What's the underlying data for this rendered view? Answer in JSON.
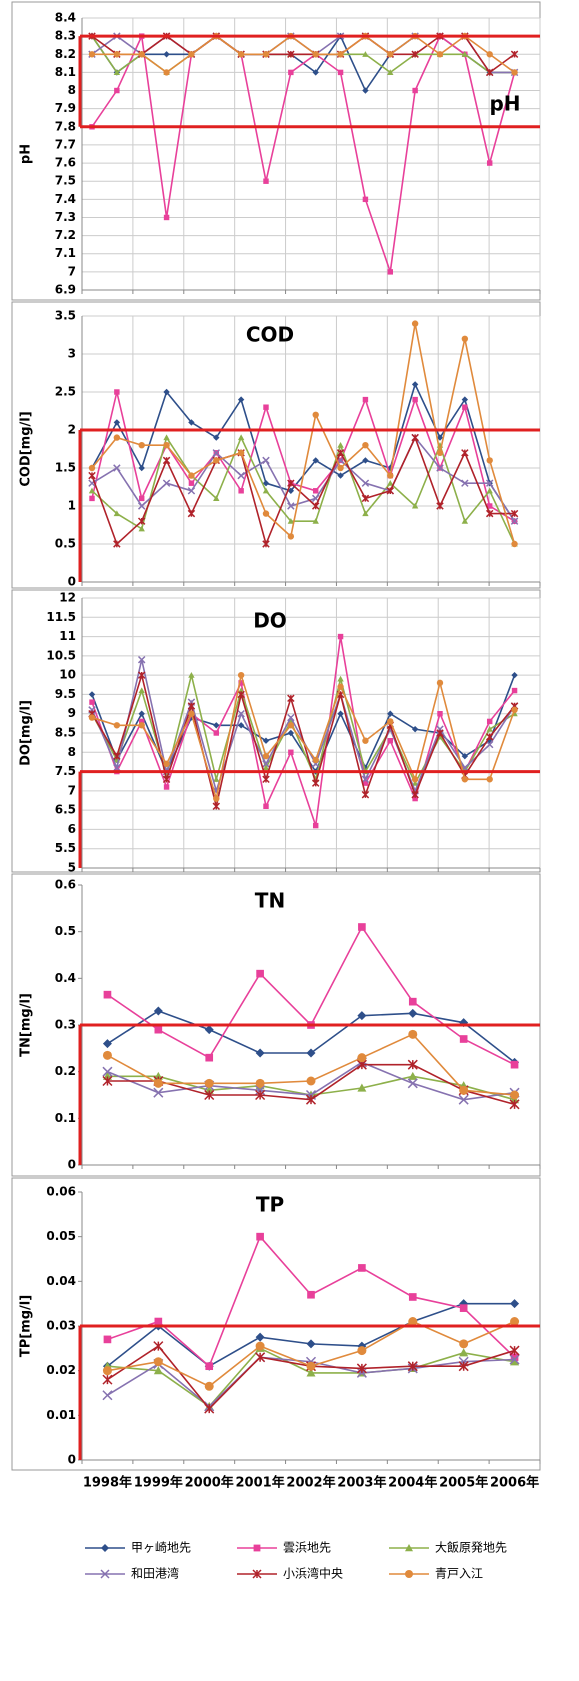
{
  "chart_data": [
    {
      "type": "line",
      "title": "pH",
      "y_label": "pH",
      "ylim": [
        6.9,
        8.4
      ],
      "yticks": [
        6.9,
        7,
        7.1,
        7.2,
        7.3,
        7.4,
        7.5,
        7.6,
        7.7,
        7.8,
        7.9,
        8,
        8.1,
        8.2,
        8.3,
        8.4
      ],
      "limits": [
        8.3,
        7.8
      ],
      "limit_color": "#e02020",
      "grid": true,
      "series": [
        {
          "color": "#2e4f8a",
          "marker": "diamond",
          "values": [
            8.3,
            8.1,
            8.2,
            8.2,
            8.2,
            8.3,
            8.2,
            8.2,
            8.2,
            8.1,
            8.3,
            8.0,
            8.2,
            8.3,
            8.3,
            8.2,
            8.1,
            8.1
          ]
        },
        {
          "color": "#e8409a",
          "marker": "square",
          "values": [
            7.8,
            8.0,
            8.3,
            7.3,
            8.2,
            8.3,
            8.2,
            7.5,
            8.1,
            8.2,
            8.1,
            7.4,
            7.0,
            8.0,
            8.3,
            8.2,
            7.6,
            8.1
          ]
        },
        {
          "color": "#8db04a",
          "marker": "triangle",
          "values": [
            8.3,
            8.1,
            8.2,
            8.1,
            8.2,
            8.3,
            8.2,
            8.2,
            8.2,
            8.2,
            8.2,
            8.2,
            8.1,
            8.2,
            8.2,
            8.2,
            8.1,
            8.1
          ]
        },
        {
          "color": "#8672b0",
          "marker": "x",
          "values": [
            8.2,
            8.3,
            8.2,
            8.3,
            8.2,
            8.3,
            8.2,
            8.2,
            8.3,
            8.2,
            8.3,
            8.3,
            8.2,
            8.3,
            8.3,
            8.3,
            8.1,
            8.1
          ]
        },
        {
          "color": "#b0222a",
          "marker": "star",
          "values": [
            8.3,
            8.2,
            8.2,
            8.3,
            8.2,
            8.3,
            8.2,
            8.2,
            8.2,
            8.2,
            8.2,
            8.3,
            8.2,
            8.2,
            8.3,
            8.3,
            8.1,
            8.2
          ]
        },
        {
          "color": "#e08a3c",
          "marker": "circle",
          "values": [
            8.2,
            8.2,
            8.2,
            8.1,
            8.2,
            8.3,
            8.2,
            8.2,
            8.3,
            8.2,
            8.2,
            8.3,
            8.2,
            8.3,
            8.2,
            8.3,
            8.2,
            8.1
          ]
        }
      ]
    },
    {
      "type": "line",
      "title": "COD",
      "y_label": "COD[mg/l]",
      "ylim": [
        0,
        3.5
      ],
      "yticks": [
        0,
        0.5,
        1,
        1.5,
        2,
        2.5,
        3,
        3.5
      ],
      "limits": [
        2
      ],
      "limit_color": "#e02020",
      "grid": true,
      "series": [
        {
          "color": "#2e4f8a",
          "marker": "diamond",
          "values": [
            1.5,
            2.1,
            1.5,
            2.5,
            2.1,
            1.9,
            2.4,
            1.3,
            1.2,
            1.6,
            1.4,
            1.6,
            1.5,
            2.6,
            1.9,
            2.4,
            1.3,
            0.8
          ]
        },
        {
          "color": "#e8409a",
          "marker": "square",
          "values": [
            1.1,
            2.5,
            1.1,
            1.8,
            1.3,
            1.7,
            1.2,
            2.3,
            1.3,
            1.2,
            1.6,
            2.4,
            1.4,
            2.4,
            1.5,
            2.3,
            1.0,
            0.8
          ]
        },
        {
          "color": "#8db04a",
          "marker": "triangle",
          "values": [
            1.2,
            0.9,
            0.7,
            1.9,
            1.4,
            1.1,
            1.9,
            1.2,
            0.8,
            0.8,
            1.8,
            0.9,
            1.3,
            1.0,
            1.8,
            0.8,
            1.2,
            0.5
          ]
        },
        {
          "color": "#8672b0",
          "marker": "x",
          "values": [
            1.3,
            1.5,
            1.0,
            1.3,
            1.2,
            1.7,
            1.4,
            1.6,
            1.0,
            1.1,
            1.6,
            1.3,
            1.2,
            1.9,
            1.5,
            1.3,
            1.3,
            0.8
          ]
        },
        {
          "color": "#b0222a",
          "marker": "star",
          "values": [
            1.4,
            0.5,
            0.8,
            1.6,
            0.9,
            1.6,
            1.7,
            0.5,
            1.3,
            1.0,
            1.7,
            1.1,
            1.2,
            1.9,
            1.0,
            1.7,
            0.9,
            0.9
          ]
        },
        {
          "color": "#e08a3c",
          "marker": "circle",
          "values": [
            1.5,
            1.9,
            1.8,
            1.8,
            1.4,
            1.6,
            1.7,
            0.9,
            0.6,
            2.2,
            1.5,
            1.8,
            1.4,
            3.4,
            1.7,
            3.2,
            1.6,
            0.5
          ]
        }
      ]
    },
    {
      "type": "line",
      "title": "DO",
      "y_label": "DO[mg/l]",
      "ylim": [
        5,
        12
      ],
      "yticks": [
        5,
        5.5,
        6,
        6.5,
        7,
        7.5,
        8,
        8.5,
        9,
        9.5,
        10,
        10.5,
        11,
        11.5,
        12
      ],
      "limits": [
        7.5
      ],
      "limit_color": "#e02020",
      "grid": true,
      "series": [
        {
          "color": "#2e4f8a",
          "marker": "diamond",
          "values": [
            9.5,
            7.8,
            9.0,
            7.5,
            8.9,
            8.7,
            8.7,
            8.3,
            8.5,
            7.5,
            9.0,
            7.6,
            9.0,
            8.6,
            8.5,
            7.9,
            8.3,
            10.0
          ]
        },
        {
          "color": "#e8409a",
          "marker": "square",
          "values": [
            9.3,
            7.5,
            8.8,
            7.1,
            9.0,
            8.5,
            9.8,
            6.6,
            8.0,
            6.1,
            11.0,
            7.2,
            8.3,
            6.8,
            9.0,
            7.5,
            8.8,
            9.6
          ]
        },
        {
          "color": "#8db04a",
          "marker": "triangle",
          "values": [
            9.0,
            7.8,
            9.6,
            7.4,
            10.0,
            7.3,
            9.6,
            7.6,
            8.8,
            7.3,
            9.9,
            7.5,
            8.6,
            7.2,
            8.4,
            7.5,
            8.6,
            9.0
          ]
        },
        {
          "color": "#8672b0",
          "marker": "x",
          "values": [
            9.1,
            7.6,
            10.4,
            7.5,
            9.3,
            7.0,
            9.0,
            7.7,
            8.9,
            7.7,
            9.5,
            7.3,
            8.6,
            7.0,
            8.6,
            7.6,
            8.2,
            9.2
          ]
        },
        {
          "color": "#b0222a",
          "marker": "star",
          "values": [
            9.0,
            7.9,
            10.0,
            7.3,
            9.2,
            6.6,
            9.5,
            7.3,
            9.4,
            7.2,
            9.5,
            6.9,
            8.7,
            6.9,
            8.5,
            7.4,
            8.4,
            9.2
          ]
        },
        {
          "color": "#e08a3c",
          "marker": "circle",
          "values": [
            8.9,
            8.7,
            8.7,
            7.7,
            9.0,
            6.8,
            10.0,
            7.9,
            8.7,
            7.8,
            9.7,
            8.3,
            8.8,
            7.3,
            9.8,
            7.3,
            7.3,
            9.1
          ]
        }
      ]
    },
    {
      "type": "line",
      "title": "TN",
      "y_label": "TN[mg/l]",
      "ylim": [
        0,
        0.6
      ],
      "yticks": [
        0,
        0.1,
        0.2,
        0.3,
        0.4,
        0.5,
        0.6
      ],
      "limits": [
        0.3
      ],
      "limit_color": "#e02020",
      "grid": false,
      "series": [
        {
          "color": "#2e4f8a",
          "marker": "diamond",
          "values": [
            0.26,
            0.33,
            0.29,
            0.24,
            0.24,
            0.32,
            0.325,
            0.305,
            0.22
          ]
        },
        {
          "color": "#e8409a",
          "marker": "square",
          "values": [
            0.365,
            0.29,
            0.23,
            0.41,
            0.3,
            0.51,
            0.35,
            0.27,
            0.215
          ]
        },
        {
          "color": "#8db04a",
          "marker": "triangle",
          "values": [
            0.19,
            0.19,
            0.16,
            0.17,
            0.15,
            0.165,
            0.19,
            0.17,
            0.14
          ]
        },
        {
          "color": "#8672b0",
          "marker": "x",
          "values": [
            0.2,
            0.155,
            0.17,
            0.16,
            0.15,
            0.22,
            0.175,
            0.14,
            0.155
          ]
        },
        {
          "color": "#b0222a",
          "marker": "star",
          "values": [
            0.18,
            0.18,
            0.15,
            0.15,
            0.14,
            0.215,
            0.215,
            0.16,
            0.13
          ]
        },
        {
          "color": "#e08a3c",
          "marker": "circle",
          "values": [
            0.235,
            0.175,
            0.175,
            0.175,
            0.18,
            0.23,
            0.28,
            0.16,
            0.15
          ]
        }
      ]
    },
    {
      "type": "line",
      "title": "TP",
      "y_label": "TP[mg/l]",
      "categories": [
        "1998年",
        "1999年",
        "2000年",
        "2001年",
        "2002年",
        "2003年",
        "2004年",
        "2005年",
        "2006年"
      ],
      "ylim": [
        0,
        0.06
      ],
      "yticks": [
        0,
        0.01,
        0.02,
        0.03,
        0.04,
        0.05,
        0.06
      ],
      "limits": [
        0.03
      ],
      "limit_color": "#e02020",
      "grid": false,
      "series": [
        {
          "name": "甲ヶ崎地先",
          "color": "#2e4f8a",
          "marker": "diamond",
          "values": [
            0.021,
            0.03,
            0.021,
            0.0275,
            0.026,
            0.0255,
            0.031,
            0.035,
            0.035
          ]
        },
        {
          "name": "雲浜地先",
          "color": "#e8409a",
          "marker": "square",
          "values": [
            0.027,
            0.031,
            0.021,
            0.05,
            0.037,
            0.043,
            0.0365,
            0.034,
            0.023
          ]
        },
        {
          "name": "大飯原発地先",
          "color": "#8db04a",
          "marker": "triangle",
          "values": [
            0.021,
            0.02,
            0.012,
            0.025,
            0.0195,
            0.0195,
            0.0205,
            0.024,
            0.022
          ]
        },
        {
          "name": "和田港湾",
          "color": "#8672b0",
          "marker": "x",
          "values": [
            0.0145,
            0.0215,
            0.012,
            0.023,
            0.022,
            0.0195,
            0.0205,
            0.022,
            0.0225
          ]
        },
        {
          "name": "小浜湾中央",
          "color": "#b0222a",
          "marker": "star",
          "values": [
            0.018,
            0.0255,
            0.0115,
            0.023,
            0.021,
            0.0205,
            0.021,
            0.021,
            0.0245
          ]
        },
        {
          "name": "青戸入江",
          "color": "#e08a3c",
          "marker": "circle",
          "values": [
            0.02,
            0.022,
            0.0165,
            0.0255,
            0.021,
            0.0245,
            0.031,
            0.026,
            0.031
          ]
        }
      ]
    }
  ]
}
